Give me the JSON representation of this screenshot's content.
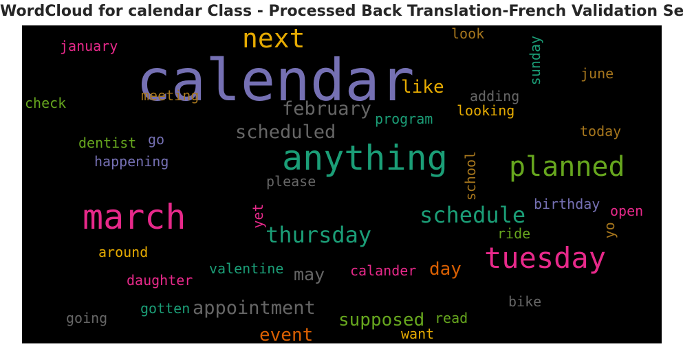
{
  "title": "WordCloud for calendar Class - Processed Back Translation-French Validation Set",
  "words": [
    {
      "text": "calendar",
      "color": "#7570b3"
    },
    {
      "text": "anything",
      "color": "#1b9e77"
    },
    {
      "text": "march",
      "color": "#e7298a"
    },
    {
      "text": "tuesday",
      "color": "#e7298a"
    },
    {
      "text": "next",
      "color": "#e6ab02"
    },
    {
      "text": "planned",
      "color": "#66a61e"
    },
    {
      "text": "schedule",
      "color": "#1b9e77"
    },
    {
      "text": "thursday",
      "color": "#1b9e77"
    },
    {
      "text": "february",
      "color": "#666666"
    },
    {
      "text": "scheduled",
      "color": "#666666"
    },
    {
      "text": "appointment",
      "color": "#666666"
    },
    {
      "text": "supposed",
      "color": "#66a61e"
    },
    {
      "text": "event",
      "color": "#d95f02"
    },
    {
      "text": "like",
      "color": "#e6ab02"
    },
    {
      "text": "day",
      "color": "#d95f02"
    },
    {
      "text": "may",
      "color": "#666666"
    },
    {
      "text": "january",
      "color": "#e7298a"
    },
    {
      "text": "look",
      "color": "#a6761d"
    },
    {
      "text": "sunday",
      "color": "#1b9e77"
    },
    {
      "text": "june",
      "color": "#a6761d"
    },
    {
      "text": "meeting",
      "color": "#a6761d"
    },
    {
      "text": "adding",
      "color": "#666666"
    },
    {
      "text": "check",
      "color": "#66a61e"
    },
    {
      "text": "looking",
      "color": "#e6ab02"
    },
    {
      "text": "program",
      "color": "#1b9e77"
    },
    {
      "text": "today",
      "color": "#a6761d"
    },
    {
      "text": "dentist",
      "color": "#66a61e"
    },
    {
      "text": "go",
      "color": "#7570b3"
    },
    {
      "text": "happening",
      "color": "#7570b3"
    },
    {
      "text": "school",
      "color": "#a6761d"
    },
    {
      "text": "please",
      "color": "#666666"
    },
    {
      "text": "birthday",
      "color": "#7570b3"
    },
    {
      "text": "open",
      "color": "#e7298a"
    },
    {
      "text": "yet",
      "color": "#e7298a"
    },
    {
      "text": "yo",
      "color": "#a6761d"
    },
    {
      "text": "ride",
      "color": "#66a61e"
    },
    {
      "text": "around",
      "color": "#e6ab02"
    },
    {
      "text": "valentine",
      "color": "#1b9e77"
    },
    {
      "text": "calander",
      "color": "#e7298a"
    },
    {
      "text": "daughter",
      "color": "#e7298a"
    },
    {
      "text": "bike",
      "color": "#666666"
    },
    {
      "text": "gotten",
      "color": "#1b9e77"
    },
    {
      "text": "going",
      "color": "#666666"
    },
    {
      "text": "read",
      "color": "#66a61e"
    },
    {
      "text": "want",
      "color": "#e6ab02"
    }
  ]
}
